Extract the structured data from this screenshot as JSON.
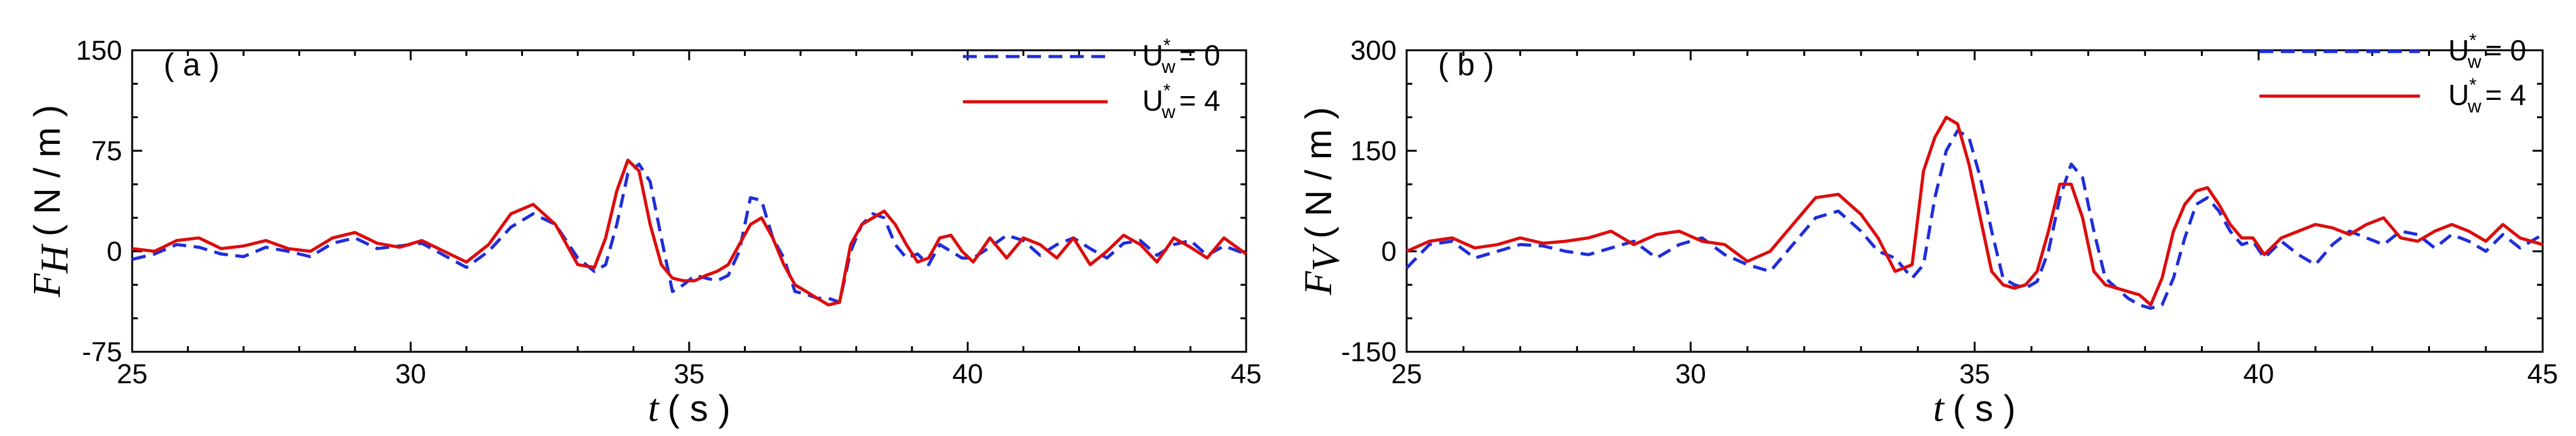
{
  "colors": {
    "series_blue": "#1f2ddb",
    "series_red": "#dd0c0c",
    "axis": "#000000"
  },
  "chart_data": [
    {
      "type": "line",
      "panel_label": "( a )",
      "xlabel_var": "t",
      "xlabel_unit": "( s )",
      "ylabel_var": "F",
      "ylabel_sub": "H",
      "ylabel_unit": "( N / m )",
      "xlim": [
        25,
        45
      ],
      "ylim": [
        -75,
        150
      ],
      "xticks": [
        25,
        30,
        35,
        40,
        45
      ],
      "xtick_labels": [
        "25",
        "30",
        "35",
        "40",
        "45"
      ],
      "yticks": [
        -75,
        0,
        75,
        150
      ],
      "ytick_labels": [
        "-75",
        "0",
        "75",
        "150"
      ],
      "legend_position": "top-right",
      "series": [
        {
          "legend_main": "U",
          "legend_sup": "*",
          "legend_sub": "w",
          "legend_value": "= 0",
          "style": "dashed",
          "color": "#1f2ddb",
          "x": [
            25.0,
            25.4,
            25.8,
            26.2,
            26.6,
            27.0,
            27.4,
            27.8,
            28.2,
            28.6,
            29.0,
            29.4,
            29.8,
            30.2,
            30.6,
            31.0,
            31.4,
            31.8,
            32.2,
            32.6,
            33.0,
            33.3,
            33.5,
            33.7,
            33.9,
            34.1,
            34.3,
            34.5,
            34.7,
            34.9,
            35.1,
            35.3,
            35.5,
            35.7,
            35.9,
            36.1,
            36.3,
            36.5,
            36.7,
            36.9,
            37.1,
            37.3,
            37.5,
            37.7,
            37.9,
            38.1,
            38.3,
            38.5,
            38.7,
            38.9,
            39.1,
            39.3,
            39.5,
            39.7,
            39.9,
            40.1,
            40.4,
            40.7,
            41.0,
            41.3,
            41.6,
            41.9,
            42.2,
            42.5,
            42.8,
            43.1,
            43.4,
            43.7,
            44.0,
            44.3,
            44.6,
            45.0
          ],
          "y": [
            -6,
            -2,
            5,
            3,
            -2,
            -4,
            3,
            0,
            -4,
            6,
            10,
            2,
            4,
            6,
            -3,
            -12,
            0,
            18,
            28,
            20,
            -5,
            -15,
            -10,
            20,
            58,
            65,
            52,
            10,
            -30,
            -25,
            -18,
            -20,
            -22,
            -18,
            0,
            40,
            38,
            10,
            -5,
            -30,
            -32,
            -35,
            -35,
            -38,
            0,
            20,
            28,
            25,
            5,
            -5,
            -2,
            -10,
            5,
            0,
            -5,
            -5,
            3,
            12,
            8,
            -3,
            5,
            10,
            2,
            -5,
            6,
            8,
            -3,
            5,
            8,
            -3,
            4,
            -2
          ]
        },
        {
          "legend_main": "U",
          "legend_sup": "*",
          "legend_sub": "w",
          "legend_value": "= 4",
          "style": "solid",
          "color": "#dd0c0c",
          "x": [
            25.0,
            25.4,
            25.8,
            26.2,
            26.6,
            27.0,
            27.4,
            27.8,
            28.2,
            28.6,
            29.0,
            29.4,
            29.8,
            30.2,
            30.6,
            31.0,
            31.4,
            31.8,
            32.2,
            32.6,
            33.0,
            33.3,
            33.5,
            33.7,
            33.9,
            34.1,
            34.3,
            34.5,
            34.7,
            34.9,
            35.1,
            35.3,
            35.5,
            35.7,
            35.9,
            36.1,
            36.3,
            36.5,
            36.7,
            36.9,
            37.1,
            37.3,
            37.5,
            37.7,
            37.9,
            38.1,
            38.3,
            38.5,
            38.7,
            38.9,
            39.1,
            39.3,
            39.5,
            39.7,
            39.9,
            40.1,
            40.4,
            40.7,
            41.0,
            41.3,
            41.6,
            41.9,
            42.2,
            42.5,
            42.8,
            43.1,
            43.4,
            43.7,
            44.0,
            44.3,
            44.6,
            45.0
          ],
          "y": [
            2,
            0,
            8,
            10,
            2,
            4,
            8,
            2,
            0,
            10,
            14,
            6,
            3,
            8,
            0,
            -8,
            5,
            28,
            35,
            20,
            -10,
            -12,
            10,
            45,
            68,
            60,
            20,
            -10,
            -20,
            -22,
            -22,
            -18,
            -15,
            -10,
            5,
            20,
            25,
            10,
            -10,
            -25,
            -30,
            -35,
            -40,
            -38,
            5,
            20,
            25,
            30,
            20,
            5,
            -8,
            -5,
            10,
            12,
            0,
            -8,
            10,
            -5,
            10,
            5,
            -5,
            10,
            -10,
            0,
            12,
            5,
            -8,
            10,
            3,
            -5,
            10,
            -2
          ]
        }
      ]
    },
    {
      "type": "line",
      "panel_label": "( b )",
      "xlabel_var": "t",
      "xlabel_unit": "( s )",
      "ylabel_var": "F",
      "ylabel_sub": "V",
      "ylabel_unit": "( N / m )",
      "xlim": [
        25,
        45
      ],
      "ylim": [
        -150,
        300
      ],
      "xticks": [
        25,
        30,
        35,
        40,
        45
      ],
      "xtick_labels": [
        "25",
        "30",
        "35",
        "40",
        "45"
      ],
      "yticks": [
        -150,
        0,
        150,
        300
      ],
      "ytick_labels": [
        "-150",
        "0",
        "150",
        "300"
      ],
      "legend_position": "top-right",
      "series": [
        {
          "legend_main": "U",
          "legend_sup": "*",
          "legend_sub": "w",
          "legend_value": "= 0",
          "style": "dashed",
          "color": "#1f2ddb",
          "x": [
            25.0,
            25.4,
            25.8,
            26.2,
            26.6,
            27.0,
            27.4,
            27.8,
            28.2,
            28.6,
            29.0,
            29.4,
            29.8,
            30.2,
            30.6,
            31.0,
            31.4,
            31.8,
            32.2,
            32.6,
            33.0,
            33.3,
            33.6,
            33.9,
            34.1,
            34.3,
            34.5,
            34.7,
            34.9,
            35.1,
            35.3,
            35.5,
            35.7,
            35.9,
            36.1,
            36.3,
            36.5,
            36.7,
            36.9,
            37.1,
            37.3,
            37.5,
            37.7,
            37.9,
            38.1,
            38.3,
            38.5,
            38.7,
            38.9,
            39.1,
            39.3,
            39.5,
            39.7,
            39.9,
            40.1,
            40.4,
            40.7,
            41.0,
            41.3,
            41.6,
            41.9,
            42.2,
            42.5,
            42.8,
            43.1,
            43.4,
            43.7,
            44.0,
            44.3,
            44.6,
            45.0
          ],
          "y": [
            -25,
            10,
            15,
            -10,
            0,
            10,
            8,
            0,
            -5,
            5,
            15,
            -10,
            10,
            20,
            -5,
            -20,
            -30,
            10,
            50,
            60,
            30,
            0,
            -10,
            -40,
            -20,
            80,
            150,
            180,
            170,
            110,
            30,
            -40,
            -50,
            -55,
            -45,
            0,
            80,
            130,
            110,
            30,
            -40,
            -55,
            -70,
            -80,
            -85,
            -80,
            -40,
            20,
            70,
            80,
            60,
            30,
            10,
            15,
            -10,
            15,
            -5,
            -20,
            10,
            30,
            20,
            10,
            30,
            25,
            5,
            25,
            15,
            0,
            25,
            5,
            25
          ]
        },
        {
          "legend_main": "U",
          "legend_sup": "*",
          "legend_sub": "w",
          "legend_value": "= 4",
          "style": "solid",
          "color": "#dd0c0c",
          "x": [
            25.0,
            25.4,
            25.8,
            26.2,
            26.6,
            27.0,
            27.4,
            27.8,
            28.2,
            28.6,
            29.0,
            29.4,
            29.8,
            30.2,
            30.6,
            31.0,
            31.4,
            31.8,
            32.2,
            32.6,
            33.0,
            33.3,
            33.6,
            33.9,
            34.1,
            34.3,
            34.5,
            34.7,
            34.9,
            35.1,
            35.3,
            35.5,
            35.7,
            35.9,
            36.1,
            36.3,
            36.5,
            36.7,
            36.9,
            37.1,
            37.3,
            37.5,
            37.7,
            37.9,
            38.1,
            38.3,
            38.5,
            38.7,
            38.9,
            39.1,
            39.3,
            39.5,
            39.7,
            39.9,
            40.1,
            40.4,
            40.7,
            41.0,
            41.3,
            41.6,
            41.9,
            42.2,
            42.5,
            42.8,
            43.1,
            43.4,
            43.7,
            44.0,
            44.3,
            44.6,
            45.0
          ],
          "y": [
            0,
            15,
            20,
            5,
            10,
            20,
            12,
            15,
            20,
            30,
            10,
            25,
            30,
            15,
            10,
            -15,
            0,
            40,
            80,
            85,
            55,
            20,
            -30,
            -20,
            120,
            170,
            200,
            190,
            130,
            50,
            -30,
            -50,
            -55,
            -50,
            -30,
            30,
            100,
            100,
            50,
            -30,
            -50,
            -55,
            -60,
            -65,
            -80,
            -40,
            30,
            70,
            90,
            95,
            70,
            40,
            20,
            20,
            -5,
            20,
            30,
            40,
            35,
            25,
            40,
            50,
            20,
            15,
            30,
            40,
            30,
            15,
            40,
            20,
            10
          ]
        }
      ]
    }
  ]
}
